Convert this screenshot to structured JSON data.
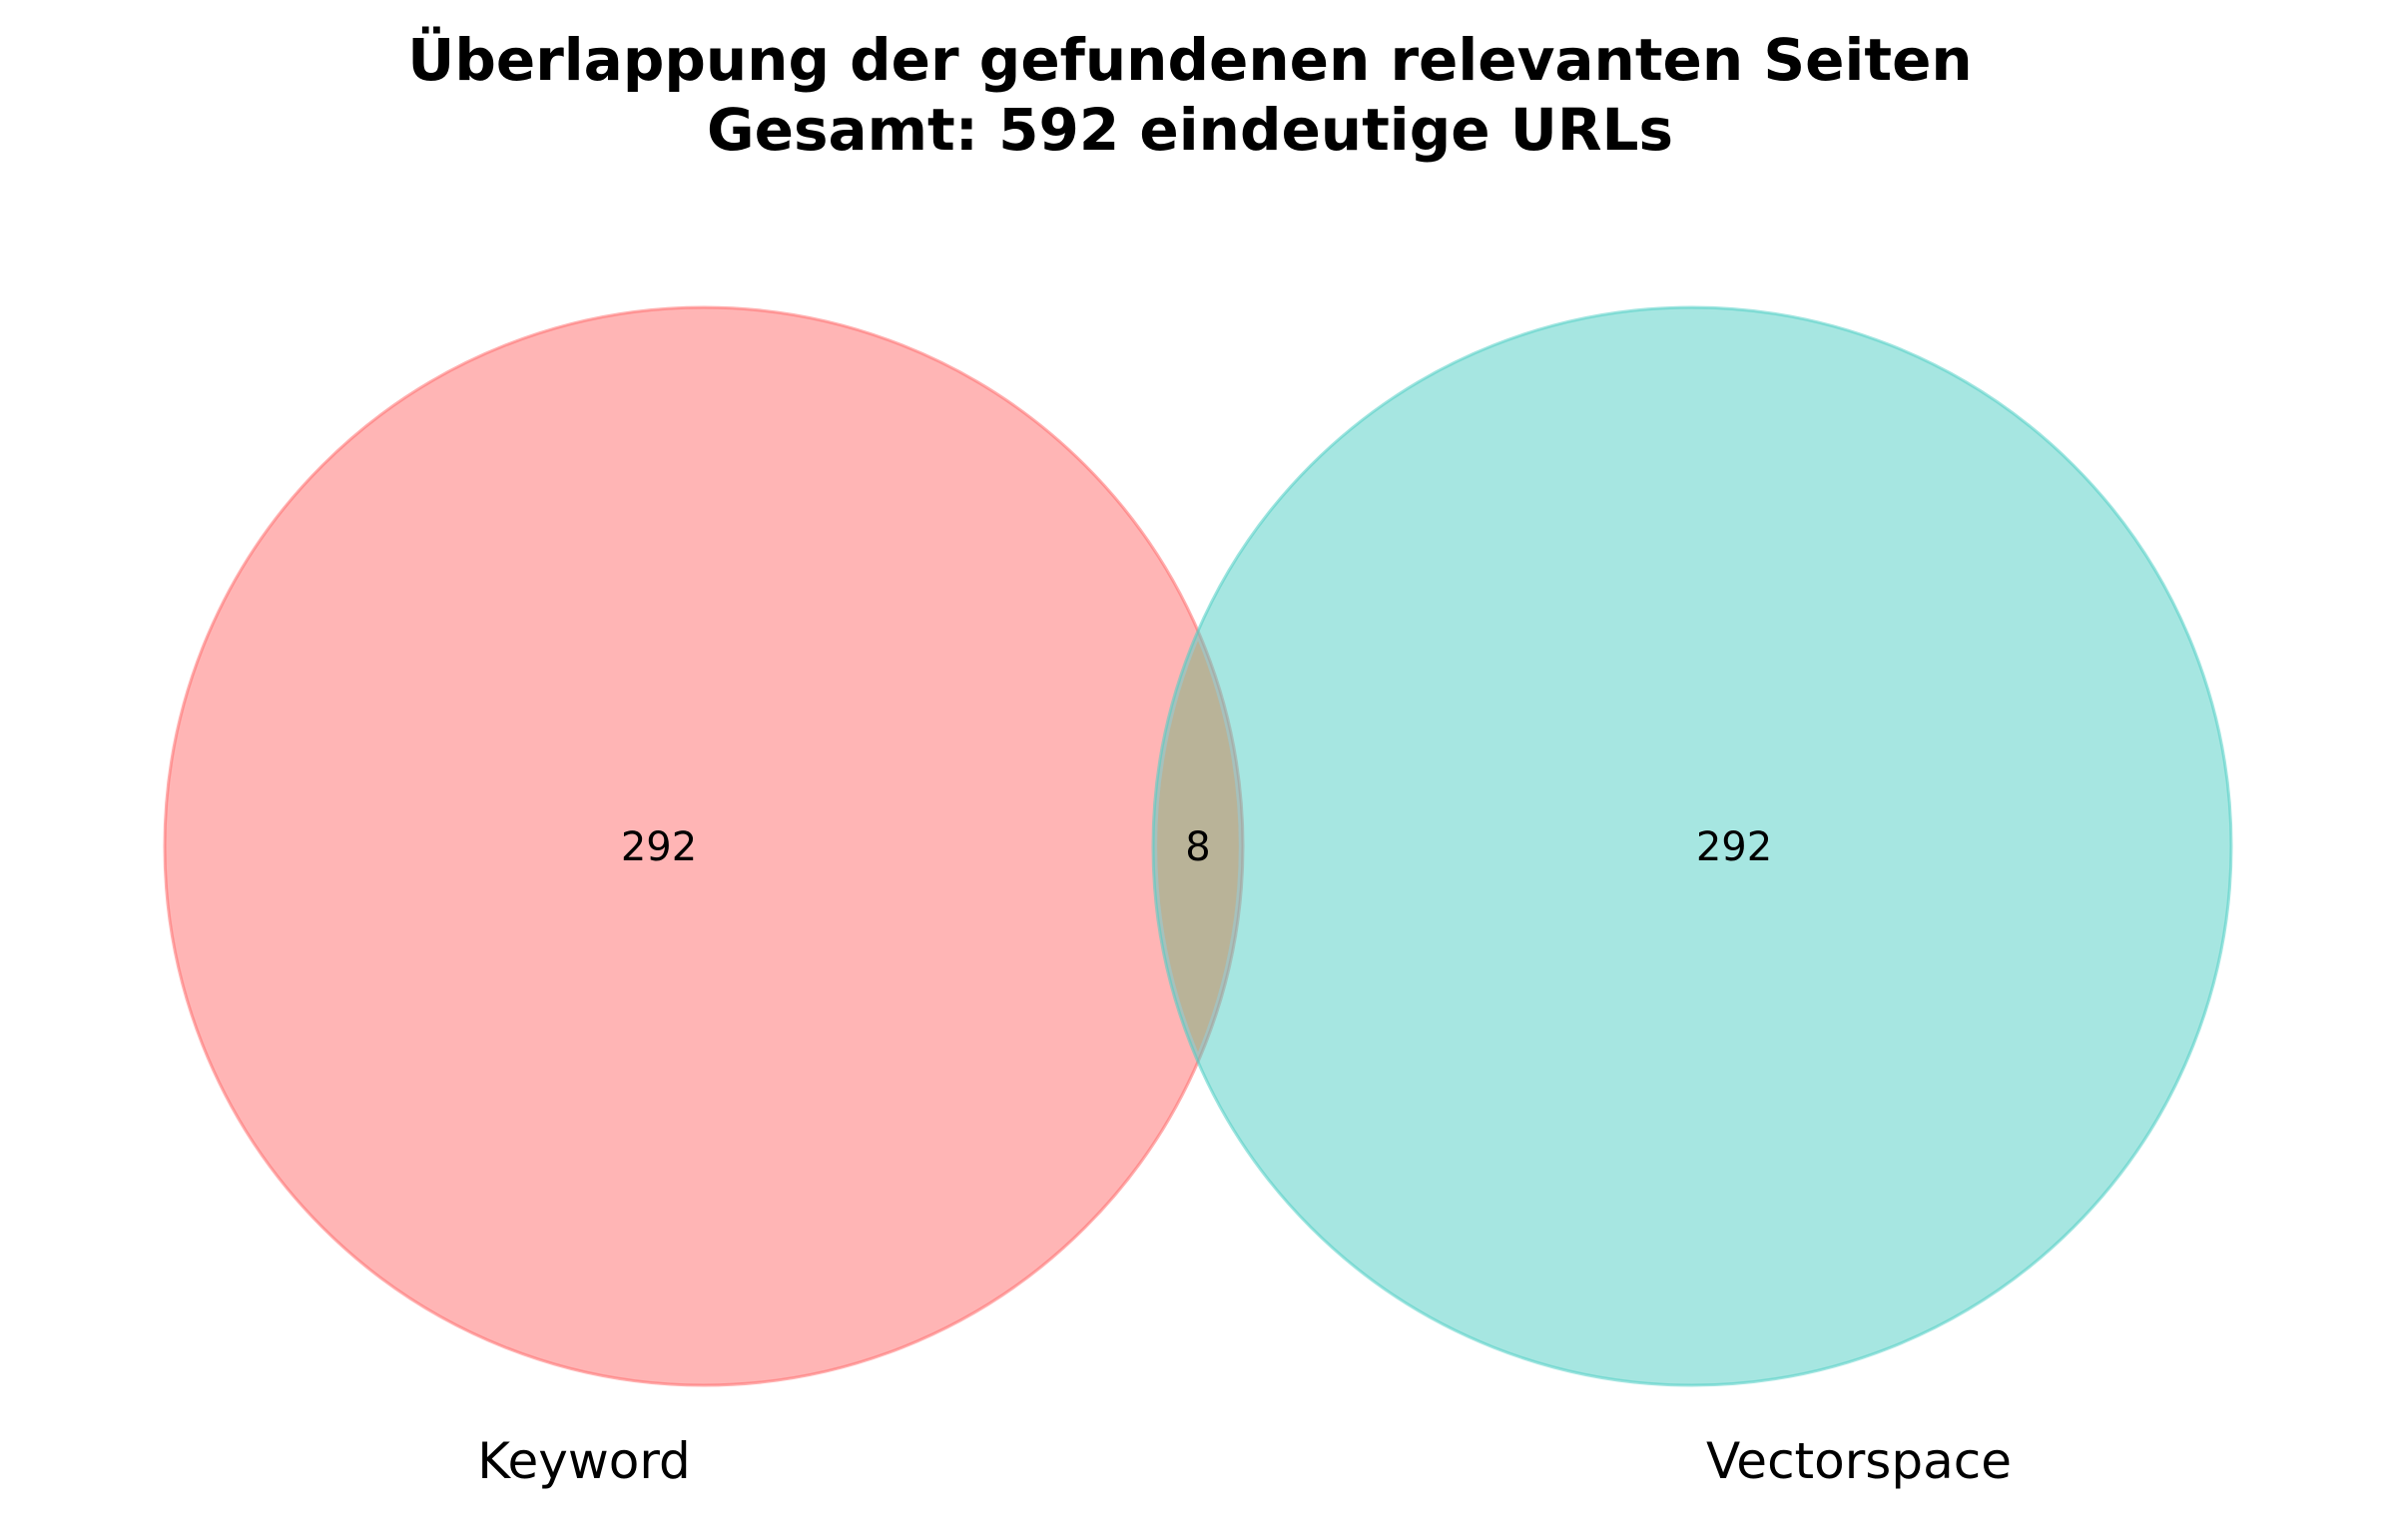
{
  "title": {
    "line1": "Überlappung der gefundenen relevanten Seiten",
    "line2": "Gesamt: 592 eindeutige URLs"
  },
  "chart_data": {
    "type": "venn",
    "sets": [
      {
        "name": "Keyword",
        "only_count": "292",
        "color": "#ff6b6b"
      },
      {
        "name": "Vectorspace",
        "only_count": "292",
        "color": "#4ecdc4"
      }
    ],
    "intersection_count": "8",
    "overlap_color": "#c9a87a",
    "total_unique": 592
  }
}
